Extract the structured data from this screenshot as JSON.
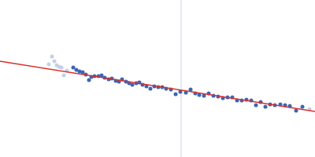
{
  "chart_data": {
    "type": "scatter",
    "tick_labels": false,
    "grid": false,
    "xlim": [
      0,
      400
    ],
    "ylim": [
      0,
      200
    ],
    "xticks": [],
    "yticks": [],
    "series": [
      {
        "type": "line",
        "color": "#ccd5e6",
        "x": [
          230,
          230
        ],
        "values": [
          0,
          200
        ]
      },
      {
        "type": "scatter",
        "color": "#c3d0e6",
        "marker": "circle",
        "x": [
          62,
          66,
          69,
          72,
          75,
          78,
          81,
          85,
          393
        ],
        "values": [
          118,
          128,
          122,
          117,
          115,
          114,
          104,
          110,
          61
        ]
      },
      {
        "type": "scatter",
        "color": "#3a66b5",
        "marker": "circle",
        "x": [
          93,
          97,
          101,
          105,
          109,
          113,
          116,
          120,
          125,
          129,
          133,
          138,
          142,
          147,
          151,
          155,
          160,
          164,
          168,
          173,
          177,
          181,
          186,
          191,
          196,
          201,
          206,
          211,
          217,
          223,
          229,
          236,
          242,
          248,
          253,
          259,
          265,
          271,
          277,
          283,
          289,
          295,
          301,
          307,
          313,
          319,
          325,
          331,
          337,
          343,
          349,
          356,
          362,
          368,
          376,
          384
        ],
        "values": [
          114,
          111,
          109,
          108,
          105,
          98,
          102,
          103,
          103,
          104,
          101,
          99,
          100,
          97,
          96,
          99,
          96,
          94,
          92,
          94,
          95,
          92,
          90,
          87,
          90,
          89,
          89,
          87,
          86,
          80,
          83,
          82,
          86,
          81,
          79,
          78,
          81,
          78,
          77,
          75,
          76,
          76,
          72,
          72,
          73,
          72,
          66,
          70,
          64,
          67,
          66,
          67,
          66,
          65,
          59,
          64
        ]
      },
      {
        "type": "line",
        "color": "#d9302c",
        "x": [
          0,
          400
        ],
        "values": [
          122,
          58
        ]
      }
    ]
  }
}
